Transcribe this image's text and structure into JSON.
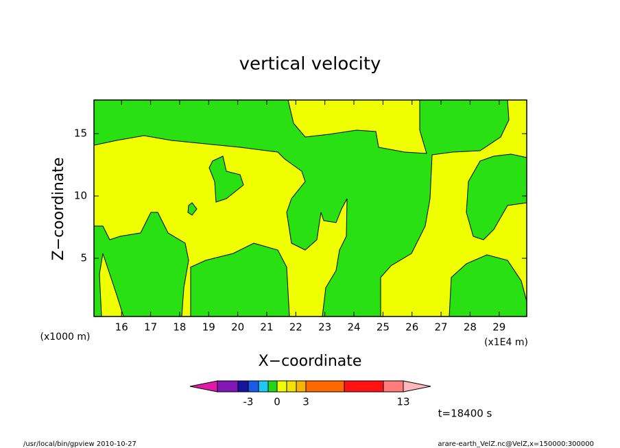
{
  "chart_data": {
    "type": "contour",
    "title": "vertical velocity",
    "x_label": "X−coordinate",
    "y_label": "Z−coordinate",
    "x_unit_left": "(x1000 m)",
    "x_unit_right": "(x1E4 m)",
    "xlim": [
      15.05,
      29.95
    ],
    "xticks": [
      16,
      17,
      18,
      19,
      20,
      21,
      22,
      23,
      24,
      25,
      26,
      27,
      28,
      29
    ],
    "ylim": [
      0.33,
      17.7
    ],
    "yticks": [
      5,
      10,
      15
    ],
    "colorbar": {
      "colors": [
        "#e01aa8",
        "#8216b4",
        "#14149e",
        "#1a5ae6",
        "#22c6f2",
        "#24d618",
        "#f0ff00",
        "#f4e200",
        "#f8b400",
        "#ff6a00",
        "#ff1212",
        "#ff7c7c",
        "#ffb6bc"
      ],
      "boundaries": [
        null,
        null,
        -3,
        null,
        null,
        0,
        null,
        null,
        3,
        null,
        null,
        13
      ]
    },
    "time_label": "t=18400 s",
    "footer_left": "/usr/local/bin/gpview   2010-10-27",
    "footer_right": "arare-earth_VelZ.nc@VelZ,x=150000:300000"
  }
}
